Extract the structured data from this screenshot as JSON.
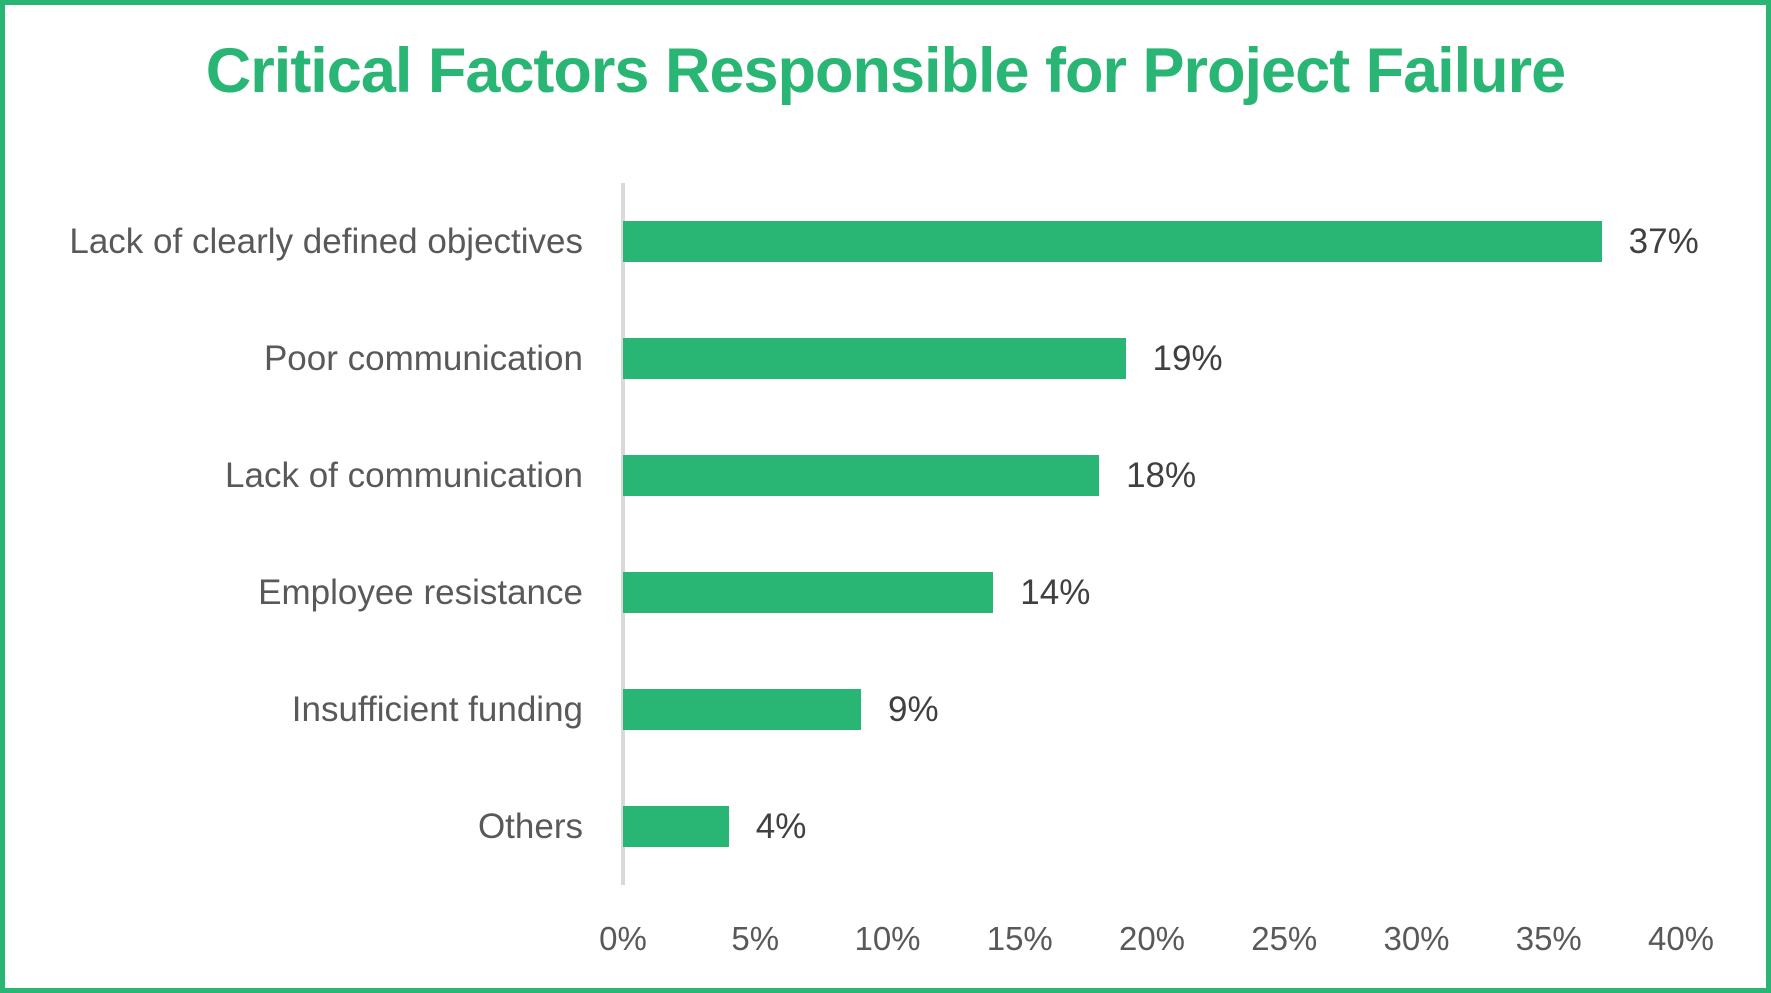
{
  "page": {
    "title": "Critical Factors Responsible for Project Failure"
  },
  "colors": {
    "accent_green": "#29B573",
    "border_green": "#29B573",
    "category_label_gray": "#595959",
    "value_label_gray": "#404040",
    "tick_label_gray": "#595959",
    "axis_line_gray": "#D9D9D9",
    "background": "#FFFFFF"
  },
  "chart_data": {
    "type": "bar",
    "orientation": "horizontal",
    "title": "Critical Factors Responsible for Project Failure",
    "categories": [
      "Lack of clearly defined objectives",
      "Poor communication",
      "Lack of communication",
      "Employee resistance",
      "Insufficient funding",
      "Others"
    ],
    "values": [
      37,
      19,
      18,
      14,
      9,
      4
    ],
    "value_labels": [
      "37%",
      "19%",
      "18%",
      "14%",
      "9%",
      "4%"
    ],
    "xlabel": "",
    "ylabel": "",
    "xlim": [
      0,
      40
    ],
    "x_tick_values": [
      0,
      5,
      10,
      15,
      20,
      25,
      30,
      35,
      40
    ],
    "x_tick_labels": [
      "0%",
      "5%",
      "10%",
      "15%",
      "20%",
      "25%",
      "30%",
      "35%",
      "40%"
    ],
    "grid": false,
    "legend": false,
    "bar_color": "#29B573",
    "data_labels_position": "outside-end"
  }
}
